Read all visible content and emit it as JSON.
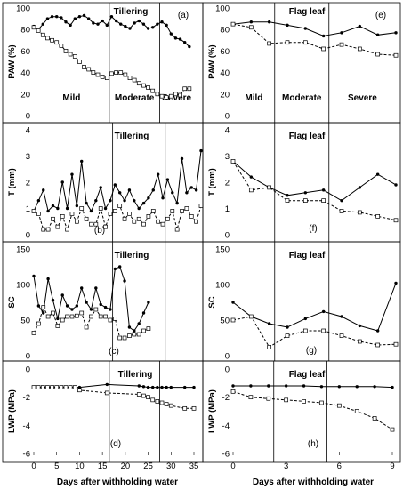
{
  "figure": {
    "xlabel_left": "Days after withholding water",
    "xlabel_right": "Days after withholding water"
  },
  "chart_data": [
    {
      "type": "line",
      "panel": "a",
      "title": "Tillering",
      "letter": "(a)",
      "ylabel": "PAW (%)",
      "xlim": [
        0,
        35
      ],
      "ylim": [
        0,
        100
      ],
      "yticks": [
        0,
        20,
        40,
        60,
        80,
        100
      ],
      "stage_lines": [
        16.5,
        27.5
      ],
      "stage_labels": [
        "Mild",
        "Moderate",
        "Severe"
      ],
      "series": [
        {
          "style": "solid",
          "marker": "dot",
          "x": [
            0,
            1,
            2,
            3,
            4,
            5,
            6,
            7,
            8,
            9,
            10,
            11,
            12,
            13,
            14,
            15,
            16,
            17,
            18,
            19,
            20,
            21,
            22,
            23,
            24,
            25,
            26,
            27,
            28,
            29,
            30,
            31,
            32,
            33,
            34
          ],
          "y": [
            83,
            80,
            85,
            90,
            92,
            92,
            91,
            87,
            84,
            90,
            92,
            93,
            90,
            86,
            85,
            88,
            84,
            92,
            88,
            85,
            83,
            81,
            86,
            88,
            85,
            81,
            82,
            85,
            87,
            84,
            76,
            72,
            71,
            68,
            64
          ]
        },
        {
          "style": "dashed",
          "marker": "square",
          "x": [
            0,
            1,
            2,
            3,
            4,
            5,
            6,
            7,
            8,
            9,
            10,
            11,
            12,
            13,
            14,
            15,
            16,
            17,
            18,
            19,
            20,
            21,
            22,
            23,
            24,
            25,
            26,
            27,
            28,
            29,
            30,
            31,
            32,
            33,
            34
          ],
          "y": [
            82,
            79,
            75,
            72,
            70,
            68,
            65,
            60,
            57,
            55,
            50,
            45,
            43,
            40,
            38,
            36,
            35,
            39,
            40,
            40,
            38,
            35,
            33,
            30,
            28,
            26,
            23,
            20,
            18,
            17,
            18,
            20,
            19,
            25,
            25
          ]
        }
      ]
    },
    {
      "type": "line",
      "panel": "e",
      "title": "Flag leaf",
      "letter": "(e)",
      "ylabel": "PAW (%)",
      "xlim": [
        0,
        9
      ],
      "ylim": [
        0,
        100
      ],
      "yticks": [
        0,
        20,
        40,
        60,
        80,
        100
      ],
      "stage_lines": [
        2.3,
        5.3
      ],
      "stage_labels": [
        "Mild",
        "Moderate",
        "Severe"
      ],
      "series": [
        {
          "style": "solid",
          "marker": "dot",
          "x": [
            0,
            1,
            2,
            3,
            4,
            5,
            6,
            7,
            8,
            9
          ],
          "y": [
            85,
            87,
            87,
            84,
            81,
            74,
            77,
            83,
            75,
            77
          ]
        },
        {
          "style": "dashed",
          "marker": "square",
          "x": [
            0,
            1,
            2,
            3,
            4,
            5,
            6,
            7,
            8,
            9
          ],
          "y": [
            85,
            82,
            67,
            68,
            68,
            62,
            66,
            62,
            57,
            56
          ]
        }
      ]
    },
    {
      "type": "line",
      "panel": "b",
      "title": "Tillering",
      "letter": "(b)",
      "ylabel": "T (mm)",
      "xlim": [
        0,
        35
      ],
      "ylim": [
        0,
        4
      ],
      "yticks": [
        0,
        1,
        2,
        3,
        4
      ],
      "stage_lines": [
        16.5,
        27.5
      ],
      "stage_labels": [],
      "series": [
        {
          "style": "solid",
          "marker": "dot",
          "x": [
            0,
            1,
            2,
            3,
            4,
            5,
            6,
            7,
            8,
            9,
            10,
            11,
            12,
            13,
            14,
            15,
            16,
            17,
            18,
            19,
            20,
            21,
            22,
            23,
            24,
            25,
            26,
            27,
            28,
            29,
            30,
            31,
            32,
            33,
            34,
            35
          ],
          "y": [
            0.9,
            1.3,
            1.7,
            0.9,
            1.1,
            1.0,
            2.0,
            1.0,
            2.3,
            1.1,
            2.8,
            1.2,
            0.9,
            1.3,
            1.8,
            1.0,
            1.3,
            1.9,
            1.6,
            1.3,
            1.7,
            1.3,
            1.0,
            1.2,
            1.4,
            1.7,
            2.3,
            1.4,
            2.1,
            1.6,
            1.2,
            2.9,
            1.6,
            1.8,
            1.7,
            3.2
          ]
        },
        {
          "style": "dashed",
          "marker": "square",
          "x": [
            0,
            1,
            2,
            3,
            4,
            5,
            6,
            7,
            8,
            9,
            10,
            11,
            12,
            13,
            14,
            15,
            16,
            17,
            18,
            19,
            20,
            21,
            22,
            23,
            24,
            25,
            26,
            27,
            28,
            29,
            30,
            31,
            32,
            33,
            34,
            35
          ],
          "y": [
            0.9,
            0.8,
            0.2,
            0.2,
            0.6,
            0.3,
            0.7,
            0.2,
            0.8,
            0.5,
            1.0,
            0.6,
            0.4,
            0.4,
            1.0,
            0.3,
            0.8,
            0.9,
            1.1,
            0.6,
            0.8,
            0.5,
            0.6,
            0.4,
            0.7,
            0.9,
            0.5,
            0.4,
            0.6,
            0.9,
            0.2,
            0.9,
            1.0,
            0.7,
            0.5,
            1.1
          ]
        }
      ]
    },
    {
      "type": "line",
      "panel": "f",
      "title": "Flag leaf",
      "letter": "(f)",
      "ylabel": "T (mm)",
      "xlim": [
        0,
        9
      ],
      "ylim": [
        0,
        4
      ],
      "yticks": [
        0,
        1,
        2,
        3,
        4
      ],
      "stage_lines": [
        2.3,
        5.3
      ],
      "stage_labels": [],
      "series": [
        {
          "style": "solid",
          "marker": "dot",
          "x": [
            0,
            1,
            2,
            3,
            4,
            5,
            6,
            7,
            8,
            9
          ],
          "y": [
            2.8,
            2.2,
            1.8,
            1.5,
            1.6,
            1.7,
            1.3,
            1.8,
            2.3,
            1.9
          ]
        },
        {
          "style": "dashed",
          "marker": "square",
          "x": [
            0,
            1,
            2,
            3,
            4,
            5,
            6,
            7,
            8,
            9
          ],
          "y": [
            2.8,
            1.7,
            1.8,
            1.3,
            1.3,
            1.3,
            0.9,
            0.85,
            0.7,
            0.55
          ]
        }
      ]
    },
    {
      "type": "line",
      "panel": "c",
      "title": "Tillering",
      "letter": "(c)",
      "ylabel": "SC",
      "xlim": [
        0,
        35
      ],
      "ylim": [
        0,
        150
      ],
      "yticks": [
        0,
        50,
        100,
        150
      ],
      "stage_lines": [
        16.5,
        27.5
      ],
      "stage_labels": [],
      "series": [
        {
          "style": "solid",
          "marker": "dot",
          "x": [
            0,
            1,
            2,
            3,
            4,
            5,
            6,
            7,
            8,
            9,
            10,
            11,
            12,
            13,
            14,
            15,
            16,
            17,
            18,
            19,
            20,
            21,
            22,
            23,
            24
          ],
          "y": [
            112,
            70,
            60,
            108,
            78,
            52,
            85,
            70,
            65,
            70,
            95,
            75,
            65,
            95,
            72,
            68,
            65,
            122,
            125,
            105,
            40,
            35,
            45,
            60,
            75
          ]
        },
        {
          "style": "dashed",
          "marker": "square",
          "x": [
            0,
            1,
            2,
            3,
            4,
            5,
            6,
            7,
            8,
            9,
            10,
            11,
            12,
            13,
            14,
            15,
            16,
            17,
            18,
            19,
            20,
            21,
            22,
            23,
            24
          ],
          "y": [
            32,
            45,
            68,
            55,
            60,
            42,
            50,
            55,
            55,
            56,
            60,
            40,
            55,
            65,
            55,
            55,
            50,
            52,
            25,
            25,
            28,
            30,
            30,
            35,
            38
          ]
        }
      ]
    },
    {
      "type": "line",
      "panel": "g",
      "title": "Flag leaf",
      "letter": "(g)",
      "ylabel": "SC",
      "xlim": [
        0,
        9
      ],
      "ylim": [
        0,
        150
      ],
      "yticks": [
        0,
        50,
        100,
        150
      ],
      "stage_lines": [
        2.3,
        5.3
      ],
      "stage_labels": [],
      "series": [
        {
          "style": "solid",
          "marker": "dot",
          "x": [
            0,
            1,
            2,
            3,
            4,
            5,
            6,
            7,
            8,
            9
          ],
          "y": [
            75,
            55,
            45,
            40,
            52,
            62,
            55,
            42,
            35,
            102
          ]
        },
        {
          "style": "dashed",
          "marker": "square",
          "x": [
            0,
            1,
            2,
            3,
            4,
            5,
            6,
            7,
            8,
            9
          ],
          "y": [
            50,
            55,
            12,
            28,
            35,
            35,
            28,
            20,
            15,
            16
          ]
        }
      ]
    },
    {
      "type": "line",
      "panel": "d",
      "title": "Tillering",
      "letter": "(d)",
      "ylabel": "LWP (MPa)",
      "xlim": [
        0,
        35
      ],
      "ylim": [
        -6,
        0
      ],
      "yticks": [
        0,
        -2,
        -4,
        -6
      ],
      "xticks": [
        0,
        5,
        10,
        15,
        20,
        25,
        30,
        35
      ],
      "stage_lines": [
        16.5,
        27.5
      ],
      "stage_labels": [],
      "series": [
        {
          "style": "solid",
          "marker": "dot",
          "x": [
            0,
            1,
            2,
            3,
            4,
            5,
            6,
            7,
            8,
            9,
            10,
            16,
            23,
            24,
            25,
            26,
            27,
            28,
            29,
            30,
            33,
            35
          ],
          "y": [
            -1.3,
            -1.3,
            -1.3,
            -1.3,
            -1.3,
            -1.3,
            -1.3,
            -1.3,
            -1.3,
            -1.3,
            -1.3,
            -1.1,
            -1.2,
            -1.25,
            -1.3,
            -1.3,
            -1.3,
            -1.3,
            -1.3,
            -1.3,
            -1.3,
            -1.3
          ]
        },
        {
          "style": "dashed",
          "marker": "square",
          "x": [
            0,
            1,
            2,
            3,
            4,
            5,
            6,
            7,
            8,
            9,
            10,
            16,
            23,
            24,
            25,
            26,
            27,
            28,
            29,
            30,
            33,
            35
          ],
          "y": [
            -1.3,
            -1.3,
            -1.3,
            -1.3,
            -1.3,
            -1.3,
            -1.3,
            -1.3,
            -1.3,
            -1.3,
            -1.5,
            -1.7,
            -1.8,
            -1.9,
            -2.0,
            -2.2,
            -2.3,
            -2.4,
            -2.5,
            -2.6,
            -2.8,
            -2.8
          ]
        }
      ]
    },
    {
      "type": "line",
      "panel": "h",
      "title": "Flag leaf",
      "letter": "(h)",
      "ylabel": "LWP (MPa)",
      "xlim": [
        0,
        9
      ],
      "ylim": [
        -6,
        0
      ],
      "yticks": [
        0,
        -2,
        -4,
        -6
      ],
      "xticks": [
        0,
        3,
        6,
        9
      ],
      "stage_lines": [
        2.3,
        5.3
      ],
      "stage_labels": [],
      "series": [
        {
          "style": "solid",
          "marker": "dot",
          "x": [
            0,
            1,
            2,
            3,
            4,
            5,
            6,
            7,
            8,
            9
          ],
          "y": [
            -1.2,
            -1.2,
            -1.2,
            -1.2,
            -1.2,
            -1.25,
            -1.25,
            -1.25,
            -1.25,
            -1.3
          ]
        },
        {
          "style": "dashed",
          "marker": "square",
          "x": [
            0,
            1,
            2,
            3,
            4,
            5,
            6,
            7,
            8,
            9
          ],
          "y": [
            -1.6,
            -2.0,
            -2.1,
            -2.2,
            -2.3,
            -2.4,
            -2.6,
            -3.0,
            -3.5,
            -4.3
          ]
        }
      ]
    }
  ]
}
